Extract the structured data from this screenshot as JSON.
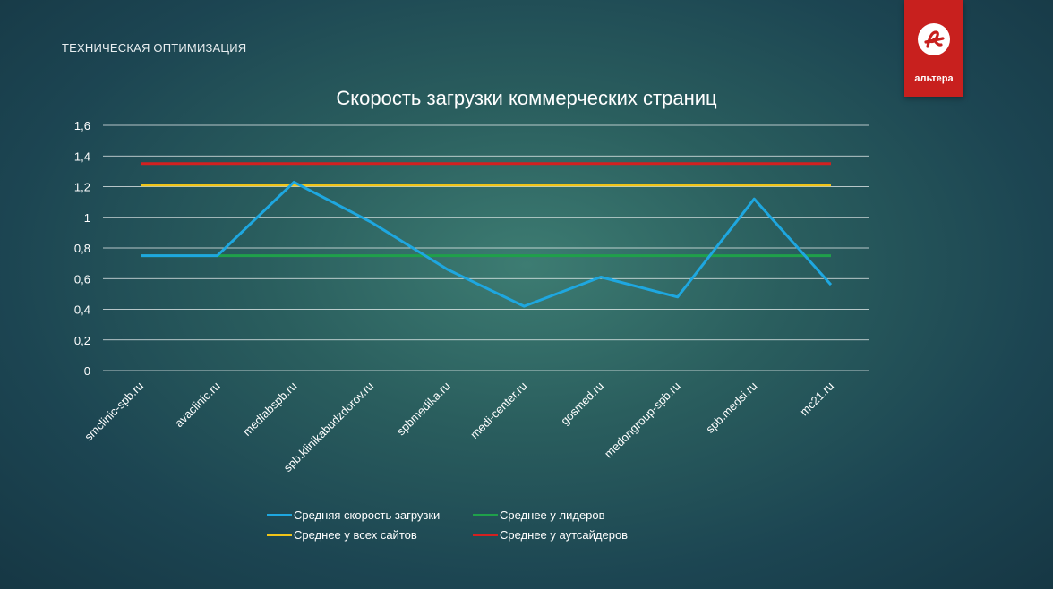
{
  "header": {
    "section_title": "ТЕХНИЧЕСКАЯ ОПТИМИЗАЦИЯ",
    "logo_text": "альтера"
  },
  "colors": {
    "logo_bg": "#c8201e",
    "series_speed": "#1ea7e0",
    "series_leaders": "#1fa04a",
    "series_all": "#f0c419",
    "series_outsiders": "#d42020",
    "grid": "#ffffff"
  },
  "chart_data": {
    "type": "line",
    "title": "Скорость загрузки коммерческих страниц",
    "xlabel": "",
    "ylabel": "",
    "ylim": [
      0,
      1.6
    ],
    "yticks": [
      "0",
      "0,2",
      "0,4",
      "0,6",
      "0,8",
      "1",
      "1,2",
      "1,4",
      "1,6"
    ],
    "grid": true,
    "legend_position": "bottom",
    "categories": [
      "smclinic-spb.ru",
      "avaclinic.ru",
      "medlabspb.ru",
      "spb.klinikabudzdorov.ru",
      "spbmedika.ru",
      "medi-center.ru",
      "gosmed.ru",
      "medongroup-spb.ru",
      "spb.medsi.ru",
      "mc21.ru"
    ],
    "series": [
      {
        "name": "Средняя скорость загрузки",
        "color": "#1ea7e0",
        "values": [
          0.75,
          0.75,
          1.23,
          0.97,
          0.66,
          0.42,
          0.61,
          0.48,
          1.12,
          0.56
        ]
      },
      {
        "name": "Среднее у лидеров",
        "color": "#1fa04a",
        "values": [
          0.75,
          0.75,
          0.75,
          0.75,
          0.75,
          0.75,
          0.75,
          0.75,
          0.75,
          0.75
        ]
      },
      {
        "name": "Среднее у всех сайтов",
        "color": "#f0c419",
        "values": [
          1.21,
          1.21,
          1.21,
          1.21,
          1.21,
          1.21,
          1.21,
          1.21,
          1.21,
          1.21
        ]
      },
      {
        "name": "Среднее у аутсайдеров",
        "color": "#d42020",
        "values": [
          1.35,
          1.35,
          1.35,
          1.35,
          1.35,
          1.35,
          1.35,
          1.35,
          1.35,
          1.35
        ]
      }
    ]
  }
}
